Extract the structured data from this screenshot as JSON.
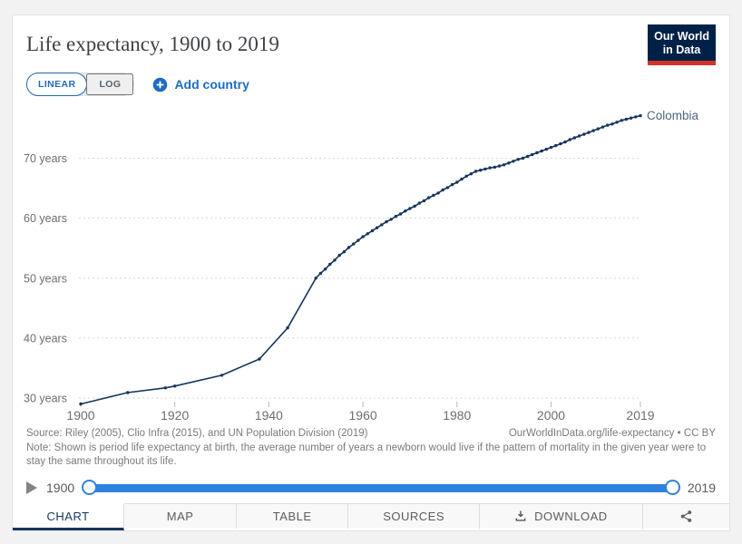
{
  "header": {
    "title": "Life expectancy, 1900 to 2019",
    "logo_line1": "Our World",
    "logo_line2": "in Data"
  },
  "controls": {
    "linear": "LINEAR",
    "log": "LOG",
    "add_country": "Add country"
  },
  "chart_data": {
    "type": "line",
    "title": "Life expectancy, 1900 to 2019",
    "xlabel": "",
    "ylabel": "",
    "unit": "years",
    "grid": true,
    "legend_position": "end-of-line-label",
    "xlim": [
      1900,
      2019
    ],
    "ylim": [
      29,
      78
    ],
    "x_ticks": [
      1900,
      1920,
      1940,
      1960,
      1980,
      2000,
      2019
    ],
    "y_ticks": [
      30,
      40,
      50,
      60,
      70
    ],
    "y_tick_suffix": " years",
    "series": [
      {
        "name": "Colombia",
        "color": "#16355c",
        "label_color": "#4e6580",
        "points": [
          [
            1900,
            29.0
          ],
          [
            1910,
            30.9
          ],
          [
            1918,
            31.7
          ],
          [
            1920,
            32.0
          ],
          [
            1930,
            33.8
          ],
          [
            1938,
            36.5
          ],
          [
            1944,
            41.7
          ],
          [
            1950,
            50.0
          ],
          [
            1951,
            50.8
          ],
          [
            1952,
            51.5
          ],
          [
            1953,
            52.3
          ],
          [
            1954,
            53.0
          ],
          [
            1955,
            53.8
          ],
          [
            1956,
            54.4
          ],
          [
            1957,
            55.1
          ],
          [
            1958,
            55.7
          ],
          [
            1959,
            56.3
          ],
          [
            1960,
            56.9
          ],
          [
            1961,
            57.4
          ],
          [
            1962,
            57.9
          ],
          [
            1963,
            58.4
          ],
          [
            1964,
            58.9
          ],
          [
            1965,
            59.4
          ],
          [
            1966,
            59.8
          ],
          [
            1967,
            60.3
          ],
          [
            1968,
            60.7
          ],
          [
            1969,
            61.2
          ],
          [
            1970,
            61.6
          ],
          [
            1971,
            62.0
          ],
          [
            1972,
            62.5
          ],
          [
            1973,
            62.9
          ],
          [
            1974,
            63.4
          ],
          [
            1975,
            63.8
          ],
          [
            1976,
            64.2
          ],
          [
            1977,
            64.7
          ],
          [
            1978,
            65.1
          ],
          [
            1979,
            65.6
          ],
          [
            1980,
            66.0
          ],
          [
            1981,
            66.5
          ],
          [
            1982,
            67.0
          ],
          [
            1983,
            67.4
          ],
          [
            1984,
            67.8
          ],
          [
            1985,
            68.0
          ],
          [
            1986,
            68.2
          ],
          [
            1987,
            68.4
          ],
          [
            1988,
            68.5
          ],
          [
            1989,
            68.7
          ],
          [
            1990,
            68.9
          ],
          [
            1991,
            69.2
          ],
          [
            1992,
            69.5
          ],
          [
            1993,
            69.8
          ],
          [
            1994,
            70.0
          ],
          [
            1995,
            70.3
          ],
          [
            1996,
            70.6
          ],
          [
            1997,
            70.9
          ],
          [
            1998,
            71.2
          ],
          [
            1999,
            71.5
          ],
          [
            2000,
            71.8
          ],
          [
            2001,
            72.1
          ],
          [
            2002,
            72.4
          ],
          [
            2003,
            72.7
          ],
          [
            2004,
            73.1
          ],
          [
            2005,
            73.4
          ],
          [
            2006,
            73.7
          ],
          [
            2007,
            74.0
          ],
          [
            2008,
            74.3
          ],
          [
            2009,
            74.6
          ],
          [
            2010,
            74.9
          ],
          [
            2011,
            75.2
          ],
          [
            2012,
            75.5
          ],
          [
            2013,
            75.7
          ],
          [
            2014,
            76.0
          ],
          [
            2015,
            76.3
          ],
          [
            2016,
            76.5
          ],
          [
            2017,
            76.7
          ],
          [
            2018,
            76.9
          ],
          [
            2019,
            77.1
          ]
        ]
      }
    ]
  },
  "footer": {
    "source": "Source: Riley (2005), Clio Infra (2015), and UN Population Division (2019)",
    "attribution": "OurWorldInData.org/life-expectancy • CC BY",
    "note": "Note: Shown is period life expectancy at birth, the average number of years a newborn would live if the pattern of mortality in the given year were to stay the same throughout its life."
  },
  "timeline": {
    "start_year": "1900",
    "end_year": "2019"
  },
  "tabs": [
    {
      "label": "CHART",
      "active": true
    },
    {
      "label": "MAP",
      "active": false
    },
    {
      "label": "TABLE",
      "active": false
    },
    {
      "label": "SOURCES",
      "active": false
    },
    {
      "label": "DOWNLOAD",
      "active": false
    },
    {
      "label": "",
      "active": false
    }
  ],
  "colors": {
    "accent_blue": "#1d6cc2",
    "slider_blue": "#2e84dc",
    "line_navy": "#16355c",
    "logo_navy": "#002147",
    "logo_red": "#d13427"
  }
}
